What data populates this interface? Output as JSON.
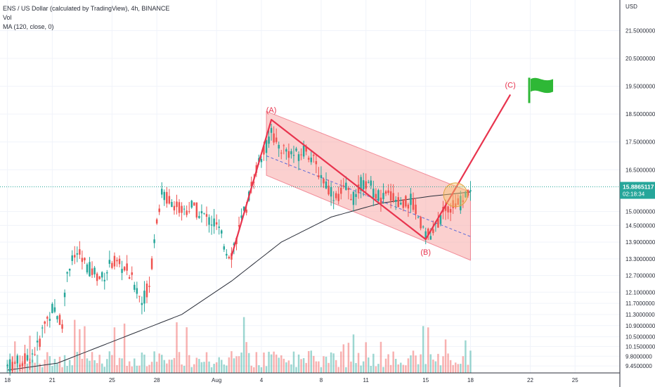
{
  "header": {
    "title": "ENS / US Dollar (calculated by TradingView), 4h, BINANCE",
    "vol_label": "Vol",
    "ma_label": "MA (120, close, 0)"
  },
  "colors": {
    "up": "#26a69a",
    "down": "#ef5350",
    "pattern": "#e8344e",
    "channel_fill": "#f7a9a8",
    "ma": "#2a2e39",
    "flag": "#2eb836",
    "highlight": "#f5c26b"
  },
  "chart_data": {
    "type": "candlestick",
    "timeframe": "4h",
    "currency": "USD",
    "x_labels": [
      {
        "label": "18",
        "t": 0
      },
      {
        "label": "21",
        "t": 18
      },
      {
        "label": "25",
        "t": 42
      },
      {
        "label": "28",
        "t": 60
      },
      {
        "label": "Aug",
        "t": 84
      },
      {
        "label": "4",
        "t": 102
      },
      {
        "label": "8",
        "t": 126
      },
      {
        "label": "11",
        "t": 144
      },
      {
        "label": "15",
        "t": 168
      },
      {
        "label": "18",
        "t": 186
      },
      {
        "label": "22",
        "t": 210
      },
      {
        "label": "25",
        "t": 228
      }
    ],
    "y_ticks": [
      "21.5000000",
      "20.5000000",
      "19.5000000",
      "18.5000000",
      "17.5000000",
      "16.5000000",
      "15.0000000",
      "14.5000000",
      "13.9000000",
      "13.3000000",
      "12.7000000",
      "12.1000000",
      "11.7000000",
      "11.3000000",
      "10.9000000",
      "10.5000000",
      "10.1500000",
      "9.8000000",
      "9.4500000"
    ],
    "y_range": [
      9.2,
      22.6
    ],
    "last_price": "15.8865117",
    "countdown": "02:18:34",
    "price_anchors": [
      [
        0,
        9.45
      ],
      [
        8,
        9.7
      ],
      [
        12,
        10.1
      ],
      [
        15,
        11.0
      ],
      [
        18,
        11.5
      ],
      [
        22,
        11.0
      ],
      [
        24,
        12.9
      ],
      [
        28,
        13.5
      ],
      [
        32,
        13.0
      ],
      [
        38,
        12.6
      ],
      [
        42,
        13.2
      ],
      [
        48,
        12.9
      ],
      [
        52,
        12.2
      ],
      [
        54,
        11.75
      ],
      [
        57,
        12.4
      ],
      [
        60,
        14.8
      ],
      [
        62,
        15.6
      ],
      [
        66,
        15.4
      ],
      [
        70,
        15.0
      ],
      [
        74,
        15.2
      ],
      [
        78,
        14.9
      ],
      [
        84,
        14.5
      ],
      [
        88,
        13.6
      ],
      [
        90,
        13.5
      ],
      [
        96,
        15.2
      ],
      [
        100,
        16.6
      ],
      [
        104,
        17.3
      ],
      [
        106,
        18.0
      ],
      [
        108,
        17.4
      ],
      [
        112,
        17.2
      ],
      [
        116,
        17.0
      ],
      [
        120,
        17.3
      ],
      [
        124,
        16.6
      ],
      [
        128,
        16.0
      ],
      [
        132,
        15.5
      ],
      [
        136,
        15.8
      ],
      [
        140,
        15.4
      ],
      [
        142,
        16.0
      ],
      [
        146,
        15.9
      ],
      [
        150,
        15.4
      ],
      [
        154,
        15.6
      ],
      [
        158,
        15.2
      ],
      [
        162,
        15.4
      ],
      [
        166,
        14.6
      ],
      [
        170,
        14.0
      ],
      [
        174,
        14.8
      ],
      [
        178,
        15.2
      ],
      [
        182,
        15.3
      ],
      [
        186,
        15.89
      ]
    ],
    "ma_anchors": [
      [
        0,
        9.3
      ],
      [
        20,
        9.55
      ],
      [
        30,
        9.9
      ],
      [
        50,
        10.6
      ],
      [
        70,
        11.3
      ],
      [
        90,
        12.5
      ],
      [
        110,
        13.9
      ],
      [
        130,
        14.8
      ],
      [
        150,
        15.3
      ],
      [
        170,
        15.55
      ],
      [
        186,
        15.7
      ]
    ],
    "volume_range": [
      0,
      1
    ],
    "wave_labels": [
      "(A)",
      "(B)",
      "(C)"
    ],
    "wave_path": [
      [
        90,
        13.4
      ],
      [
        106,
        18.3
      ],
      [
        168,
        14.0
      ],
      [
        202,
        19.2
      ]
    ],
    "channel_upper": [
      [
        104,
        18.6
      ],
      [
        186,
        15.7
      ]
    ],
    "channel_lower": [
      [
        104,
        16.3
      ],
      [
        186,
        13.25
      ]
    ],
    "channel_mid": [
      [
        104,
        17.0
      ],
      [
        186,
        14.1
      ]
    ],
    "highlight_point": [
      180,
      15.6
    ],
    "flag_point": [
      211,
      19.1
    ]
  }
}
